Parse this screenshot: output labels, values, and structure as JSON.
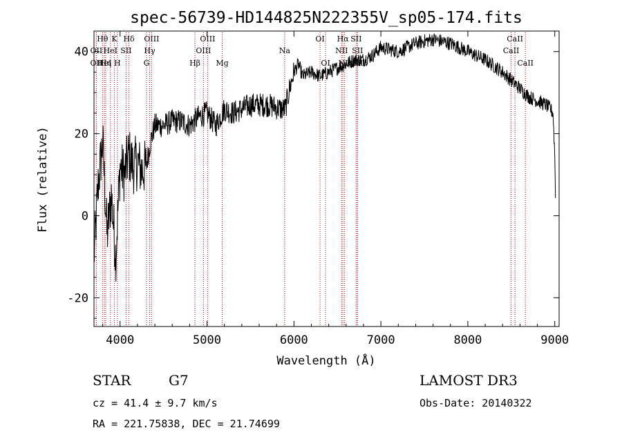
{
  "chart_data": {
    "type": "line",
    "title": "spec-56739-HD144825N222355V_sp05-174.fits",
    "xlabel": "Wavelength (Å)",
    "ylabel": "Flux (relative)",
    "xlim": [
      3700,
      9050
    ],
    "ylim": [
      -27,
      45
    ],
    "xticks": [
      4000,
      5000,
      6000,
      7000,
      8000,
      9000
    ],
    "yticks": [
      -20,
      0,
      20,
      40
    ],
    "grid": false,
    "series": [
      {
        "name": "spectrum",
        "x": [
          3700,
          3750,
          3800,
          3850,
          3900,
          3950,
          4000,
          4050,
          4100,
          4150,
          4200,
          4250,
          4300,
          4350,
          4400,
          4500,
          4600,
          4700,
          4800,
          4900,
          5000,
          5100,
          5200,
          5300,
          5500,
          5700,
          5850,
          5900,
          5950,
          6000,
          6050,
          6100,
          6200,
          6300,
          6400,
          6500,
          6600,
          6700,
          6800,
          6900,
          7000,
          7200,
          7400,
          7600,
          7800,
          8000,
          8200,
          8400,
          8500,
          8600,
          8700,
          8800,
          8900,
          8950,
          8980,
          9000,
          9010
        ],
        "y": [
          -10,
          8,
          18,
          -5,
          5,
          -10,
          12,
          10,
          15,
          12,
          13,
          11,
          12,
          18,
          22,
          22,
          23,
          23,
          22,
          24,
          25,
          22,
          26,
          25,
          27,
          27,
          26,
          26,
          31,
          35,
          37,
          34,
          35,
          34,
          35,
          36,
          37,
          38,
          38,
          39,
          41,
          40,
          42,
          43,
          42,
          40,
          38,
          35,
          33,
          31,
          29,
          28,
          27,
          26,
          25,
          15,
          2
        ]
      }
    ],
    "lines": [
      {
        "name": "Hθ",
        "x": 3798,
        "row": 0
      },
      {
        "name": "OII",
        "x": 3727,
        "row": 1
      },
      {
        "name": "OII",
        "x": 3727,
        "row": 2
      },
      {
        "name": "HeI",
        "x": 3820,
        "row": 2
      },
      {
        "name": "K",
        "x": 3934,
        "row": 0
      },
      {
        "name": "HeI",
        "x": 3889,
        "row": 1
      },
      {
        "name": "Hη",
        "x": 3835,
        "row": 2
      },
      {
        "name": "H",
        "x": 3969,
        "row": 2
      },
      {
        "name": "SII",
        "x": 4069,
        "row": 1
      },
      {
        "name": "Hδ",
        "x": 4102,
        "row": 0
      },
      {
        "name": "OIII",
        "x": 4363,
        "row": 0
      },
      {
        "name": "Hγ",
        "x": 4340,
        "row": 1
      },
      {
        "name": "G",
        "x": 4304,
        "row": 2
      },
      {
        "name": "OIII",
        "x": 5007,
        "row": 0
      },
      {
        "name": "OIII",
        "x": 4959,
        "row": 1
      },
      {
        "name": "Hβ",
        "x": 4861,
        "row": 2
      },
      {
        "name": "Mg",
        "x": 5175,
        "row": 2
      },
      {
        "name": "Na",
        "x": 5893,
        "row": 1
      },
      {
        "name": "OI",
        "x": 6300,
        "row": 0
      },
      {
        "name": "OI",
        "x": 6364,
        "row": 2
      },
      {
        "name": "Hα",
        "x": 6563,
        "row": 0
      },
      {
        "name": "NII",
        "x": 6548,
        "row": 1
      },
      {
        "name": "NII",
        "x": 6583,
        "row": 2
      },
      {
        "name": "SII",
        "x": 6716,
        "row": 0
      },
      {
        "name": "SII",
        "x": 6731,
        "row": 1
      },
      {
        "name": "SII",
        "x": 6731,
        "row": 2
      },
      {
        "name": "CaII",
        "x": 8542,
        "row": 0
      },
      {
        "name": "CaII",
        "x": 8498,
        "row": 1
      },
      {
        "name": "CaII",
        "x": 8662,
        "row": 2
      }
    ]
  },
  "info": {
    "class": "STAR",
    "subclass": "G7",
    "survey": "LAMOST DR3",
    "cz": "cz = 41.4 ± 9.7 km/s",
    "obs_date": "Obs-Date: 20140322",
    "radec": "RA = 221.75838, DEC =  21.74699"
  },
  "colors": {
    "line_marker": "#b00000",
    "spectrum": "#000000"
  }
}
